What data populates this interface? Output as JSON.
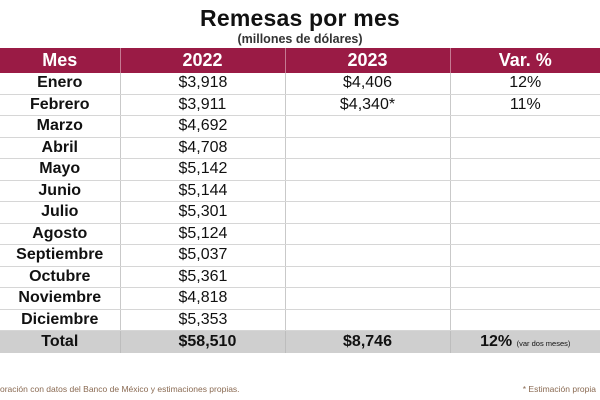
{
  "header": {
    "title": "Remesas por mes",
    "subtitle": "(millones de dólares)"
  },
  "table": {
    "columns": [
      "Mes",
      "2022",
      "2023",
      "Var. %"
    ],
    "rows": [
      {
        "mes": "Enero",
        "y2022": "$3,918",
        "y2023": "$4,406",
        "var": "12%"
      },
      {
        "mes": "Febrero",
        "y2022": "$3,911",
        "y2023": "$4,340*",
        "var": "11%"
      },
      {
        "mes": "Marzo",
        "y2022": "$4,692",
        "y2023": "",
        "var": ""
      },
      {
        "mes": "Abril",
        "y2022": "$4,708",
        "y2023": "",
        "var": ""
      },
      {
        "mes": "Mayo",
        "y2022": "$5,142",
        "y2023": "",
        "var": ""
      },
      {
        "mes": "Junio",
        "y2022": "$5,144",
        "y2023": "",
        "var": ""
      },
      {
        "mes": "Julio",
        "y2022": "$5,301",
        "y2023": "",
        "var": ""
      },
      {
        "mes": "Agosto",
        "y2022": "$5,124",
        "y2023": "",
        "var": ""
      },
      {
        "mes": "Septiembre",
        "y2022": "$5,037",
        "y2023": "",
        "var": ""
      },
      {
        "mes": "Octubre",
        "y2022": "$5,361",
        "y2023": "",
        "var": ""
      },
      {
        "mes": "Noviembre",
        "y2022": "$4,818",
        "y2023": "",
        "var": ""
      },
      {
        "mes": "Diciembre",
        "y2022": "$5,353",
        "y2023": "",
        "var": ""
      }
    ],
    "total": {
      "label": "Total",
      "y2022": "$58,510",
      "y2023": "$8,746",
      "var": "12%",
      "var_note": "(var dos meses)"
    }
  },
  "footer": {
    "source": "oración con datos del Banco de México y estimaciones propias.",
    "estimate_note": "* Estimación propia"
  },
  "colors": {
    "header_bg": "#9a1b45",
    "total_bg": "#cfcfcf"
  }
}
